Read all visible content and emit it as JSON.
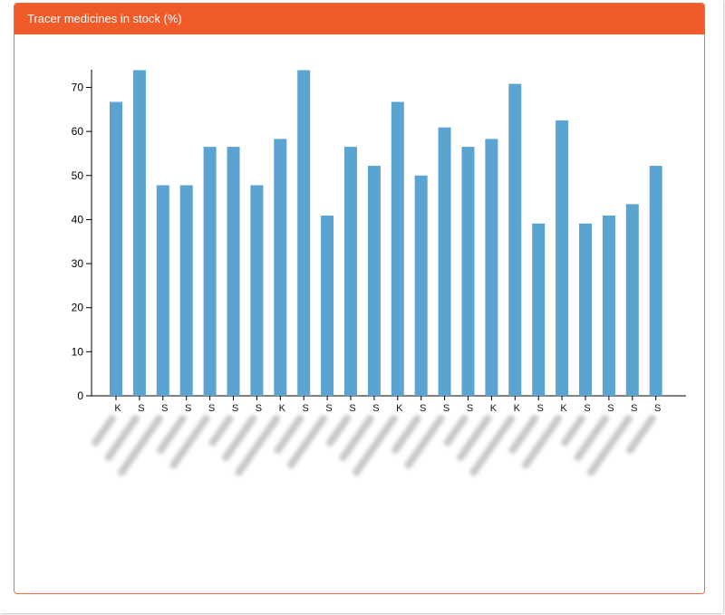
{
  "panel": {
    "title": "Tracer medicines in stock (%)",
    "header_color": "#f15a29"
  },
  "chart_data": {
    "type": "bar",
    "title": "",
    "xlabel": "",
    "ylabel": "",
    "ylim": [
      0,
      74
    ],
    "yticks": [
      0,
      10,
      20,
      30,
      40,
      50,
      60,
      70
    ],
    "bar_color": "#5ba3d1",
    "grid": false,
    "categories": [
      "K",
      "S",
      "S",
      "S",
      "S",
      "S",
      "S",
      "K",
      "S",
      "S",
      "S",
      "S",
      "K",
      "S",
      "S",
      "S",
      "K",
      "K",
      "S",
      "K",
      "S",
      "S",
      "S",
      "S"
    ],
    "values": [
      66.7,
      73.9,
      47.8,
      47.8,
      56.5,
      56.5,
      47.8,
      58.3,
      73.9,
      40.9,
      56.5,
      52.2,
      66.7,
      50.0,
      60.9,
      56.5,
      58.3,
      70.8,
      39.1,
      62.5,
      39.1,
      40.9,
      43.5,
      52.2
    ]
  }
}
